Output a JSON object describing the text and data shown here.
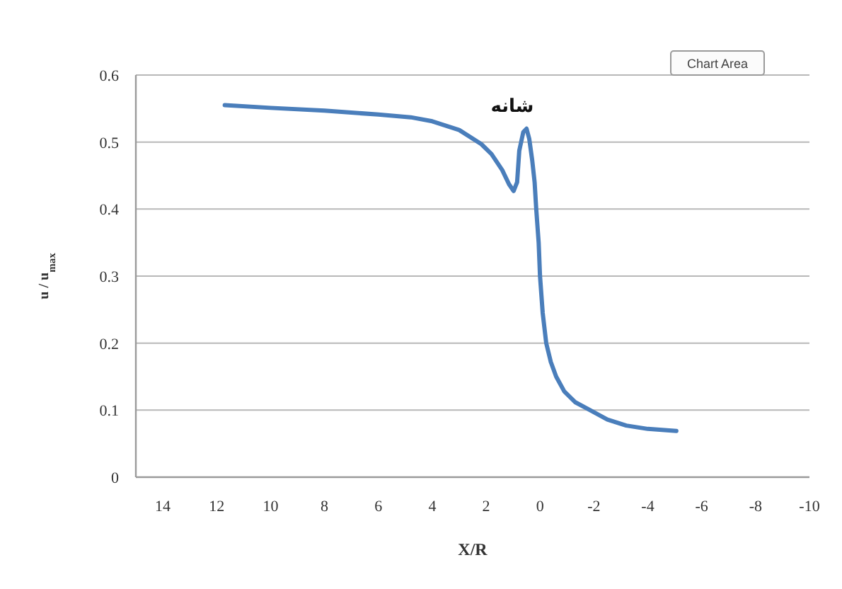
{
  "chart_data": {
    "type": "line",
    "xlabel": "X/R",
    "ylabel": "u / u$_{max}$",
    "x": [
      11.7,
      10,
      8,
      6,
      4.8,
      4,
      3,
      2.18,
      1.8,
      1.4,
      1.15,
      0.98,
      0.85,
      0.77,
      0.62,
      0.5,
      0.4,
      0.29,
      0.2,
      0.14,
      0.05,
      0.0,
      -0.1,
      -0.23,
      -0.4,
      -0.6,
      -0.9,
      -1.3,
      -1.86,
      -2.5,
      -3.2,
      -4.0,
      -5.06
    ],
    "series": [
      {
        "color": "#4a7ebb",
        "values": [
          0.555,
          0.551,
          0.547,
          0.541,
          0.537,
          0.531,
          0.518,
          0.497,
          0.482,
          0.458,
          0.437,
          0.427,
          0.44,
          0.487,
          0.515,
          0.52,
          0.505,
          0.473,
          0.44,
          0.4,
          0.35,
          0.3,
          0.245,
          0.2,
          0.172,
          0.15,
          0.128,
          0.112,
          0.1,
          0.086,
          0.077,
          0.072,
          0.069
        ]
      }
    ],
    "xlim": [
      15,
      -10
    ],
    "xticks": [
      14,
      12,
      10,
      8,
      6,
      4,
      2,
      0,
      -2,
      -4,
      -6,
      -8,
      -10
    ],
    "ylim": [
      0,
      0.6
    ],
    "yticks": [
      0,
      0.1,
      0.2,
      0.3,
      0.4,
      0.5,
      0.6
    ],
    "grid": "y",
    "marker": "none",
    "line_style": "solid",
    "annotations": [
      "شانه",
      "Chart Area"
    ]
  }
}
